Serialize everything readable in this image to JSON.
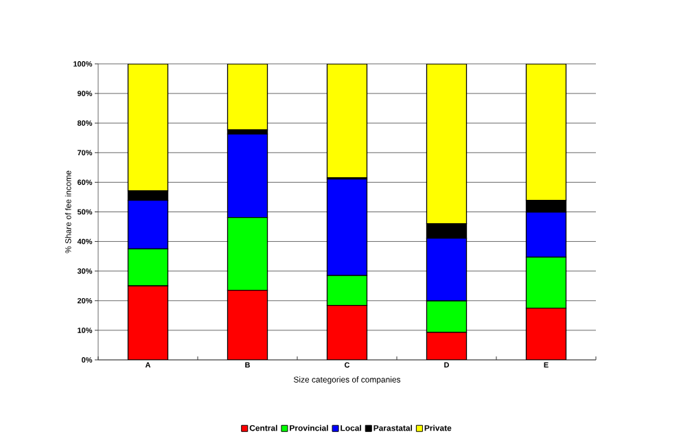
{
  "chart_data": {
    "type": "bar",
    "stacked": true,
    "xlabel": "Size categories of companies",
    "ylabel": "% Share of fee income",
    "categories": [
      "A",
      "B",
      "C",
      "D",
      "E"
    ],
    "series": [
      {
        "name": "Central",
        "color": "#ff0000",
        "values": [
          25,
          23.5,
          18.4,
          9.3,
          17.5
        ]
      },
      {
        "name": "Provincial",
        "color": "#00ff00",
        "values": [
          12.5,
          24.6,
          10.1,
          10.6,
          17.2
        ]
      },
      {
        "name": "Local",
        "color": "#0000ff",
        "values": [
          16.4,
          28.2,
          32.6,
          21.2,
          15.2
        ]
      },
      {
        "name": "Parastatal",
        "color": "#000000",
        "values": [
          3.2,
          1.4,
          0.4,
          4.9,
          4.0
        ]
      },
      {
        "name": "Private",
        "color": "#ffff00",
        "values": [
          42.9,
          22.3,
          38.5,
          54.0,
          46.1
        ]
      }
    ],
    "ylim": [
      0,
      100
    ],
    "yticks": [
      {
        "value": 0,
        "label": "0%"
      },
      {
        "value": 10,
        "label": "10%"
      },
      {
        "value": 20,
        "label": "20%"
      },
      {
        "value": 30,
        "label": "30%"
      },
      {
        "value": 40,
        "label": "40%"
      },
      {
        "value": 50,
        "label": "50%"
      },
      {
        "value": 60,
        "label": "60%"
      },
      {
        "value": 70,
        "label": "70%"
      },
      {
        "value": 80,
        "label": "80%"
      },
      {
        "value": 90,
        "label": "90%"
      },
      {
        "value": 100,
        "label": "100%"
      }
    ],
    "grid": "y",
    "legend": "bottom"
  }
}
